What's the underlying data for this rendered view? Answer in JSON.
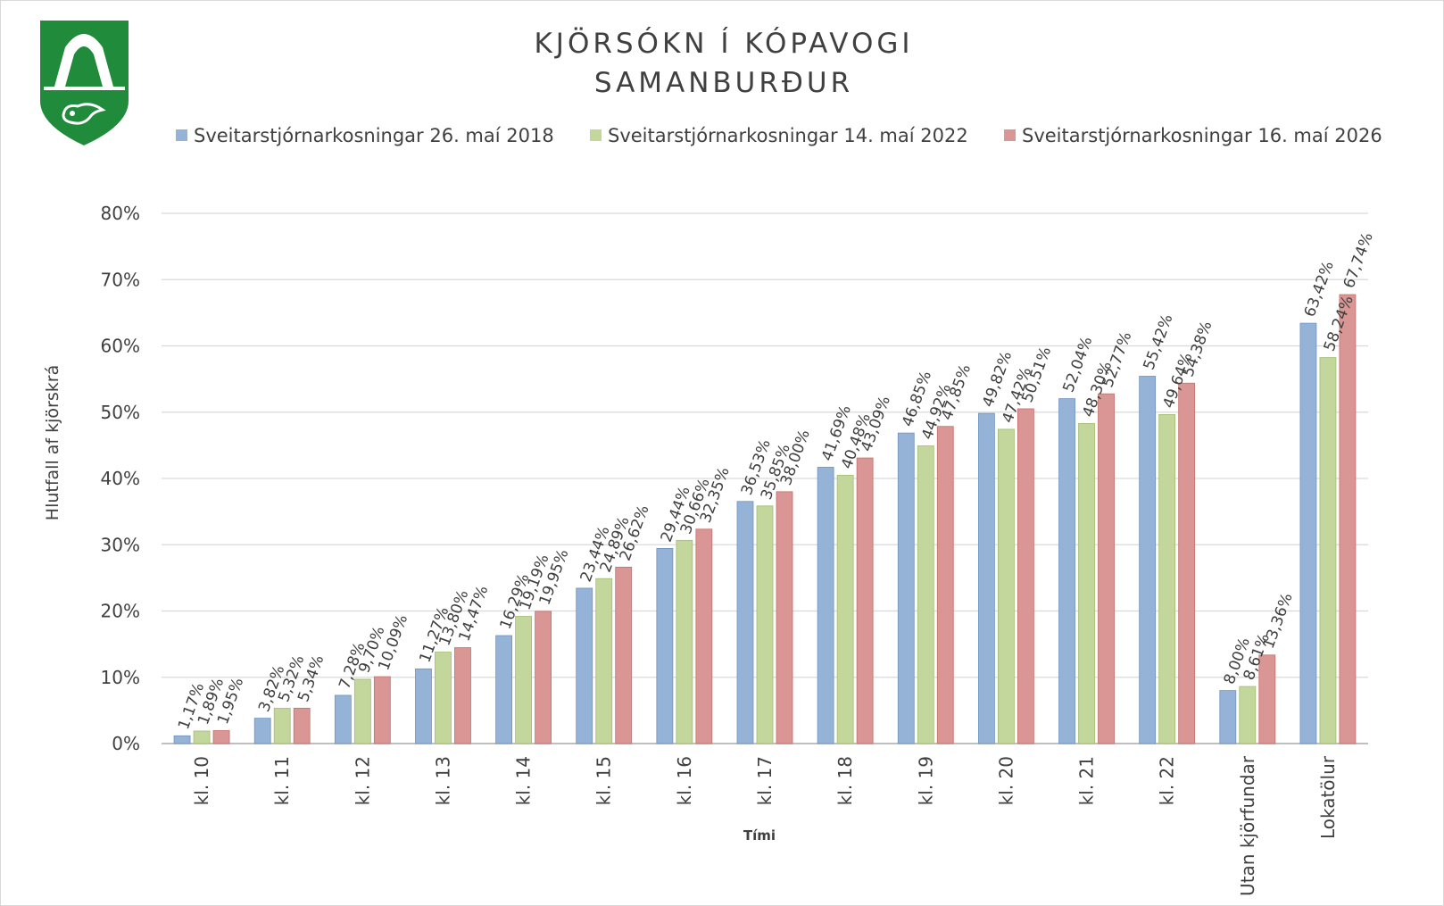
{
  "colors": {
    "series": [
      "#95b3d7",
      "#c3d69b",
      "#d99694"
    ],
    "series_edge": [
      "#6f93c0",
      "#a3bd72",
      "#c66f6c"
    ],
    "grid": "#d9d9d9",
    "text": "#404040",
    "logo_green": "#1f8b3b"
  },
  "logo": {
    "icon": "kopavogur-coat-of-arms"
  },
  "chart_data": {
    "type": "bar",
    "title_lines": [
      "KJÖRSÓKN Í KÓPAVOGI",
      "SAMANBURÐUR"
    ],
    "xlabel": "Tími",
    "ylabel": "Hlutfall af kjörskrá",
    "ylim": [
      0,
      80
    ],
    "yticks": [
      "0%",
      "10%",
      "20%",
      "30%",
      "40%",
      "50%",
      "60%",
      "70%",
      "80%"
    ],
    "grid": true,
    "legend_position": "top",
    "categories": [
      "kl. 10",
      "kl. 11",
      "kl. 12",
      "kl. 13",
      "kl. 14",
      "kl. 15",
      "kl. 16",
      "kl. 17",
      "kl. 18",
      "kl. 19",
      "kl. 20",
      "kl. 21",
      "kl. 22",
      "Utan kjörfundar",
      "Lokatölur"
    ],
    "series": [
      {
        "name": "Sveitarstjórnarkosningar 26. maí 2018",
        "values": [
          1.17,
          3.82,
          7.28,
          11.27,
          16.29,
          23.44,
          29.44,
          36.53,
          41.69,
          46.85,
          49.82,
          52.04,
          55.42,
          8.0,
          63.42
        ],
        "labels": [
          "1,17%",
          "3,82%",
          "7,28%",
          "11,27%",
          "16,29%",
          "23,44%",
          "29,44%",
          "36,53%",
          "41,69%",
          "46,85%",
          "49,82%",
          "52,04%",
          "55,42%",
          "8,00%",
          "63,42%"
        ]
      },
      {
        "name": "Sveitarstjórnarkosningar 14. maí 2022",
        "values": [
          1.89,
          5.32,
          9.7,
          13.8,
          19.19,
          24.89,
          30.66,
          35.85,
          40.48,
          44.92,
          47.42,
          48.3,
          49.64,
          8.61,
          58.24
        ],
        "labels": [
          "1,89%",
          "5,32%",
          "9,70%",
          "13,80%",
          "19,19%",
          "24,89%",
          "30,66%",
          "35,85%",
          "40,48%",
          "44,92%",
          "47,42%",
          "48,30%",
          "49,64%",
          "8,61%",
          "58,24%"
        ]
      },
      {
        "name": "Sveitarstjórnarkosningar 16. maí 2026",
        "values": [
          1.95,
          5.34,
          10.09,
          14.47,
          19.95,
          26.62,
          32.35,
          38.0,
          43.09,
          47.85,
          50.51,
          52.77,
          54.38,
          13.36,
          67.74
        ],
        "labels": [
          "1,95%",
          "5,34%",
          "10,09%",
          "14,47%",
          "19,95%",
          "26,62%",
          "32,35%",
          "38,00%",
          "43,09%",
          "47,85%",
          "50,51%",
          "52,77%",
          "54,38%",
          "13,36%",
          "67,74%"
        ]
      }
    ]
  }
}
